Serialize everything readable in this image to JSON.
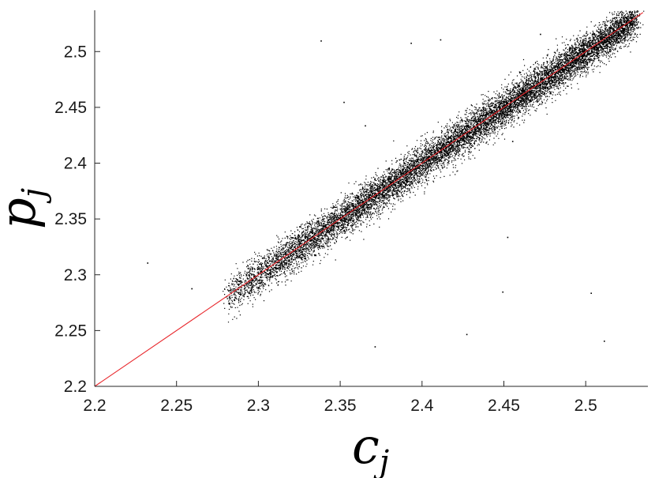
{
  "chart_data": {
    "type": "scatter",
    "title": "",
    "xlabel": {
      "base": "c",
      "sub": "j"
    },
    "ylabel": {
      "base": "p",
      "sub": "j"
    },
    "xlim": [
      2.2,
      2.538
    ],
    "ylim": [
      2.2,
      2.537
    ],
    "xticks": [
      "2.2",
      "2.25",
      "2.3",
      "2.35",
      "2.4",
      "2.45",
      "2.5"
    ],
    "yticks": [
      "2.2",
      "2.25",
      "2.3",
      "2.35",
      "2.4",
      "2.45",
      "2.5"
    ],
    "xtick_values": [
      2.2,
      2.25,
      2.3,
      2.35,
      2.4,
      2.45,
      2.5
    ],
    "ytick_values": [
      2.2,
      2.25,
      2.3,
      2.35,
      2.4,
      2.45,
      2.5
    ],
    "grid": false,
    "reference_line": {
      "from": [
        2.2,
        2.2
      ],
      "to": [
        2.535,
        2.535
      ],
      "color": "#e8252a"
    },
    "point_cloud": {
      "x_range": [
        2.28,
        2.53
      ],
      "approx_count": 12000,
      "spread": 0.008,
      "color": "#000000"
    },
    "outliers": [
      {
        "x": 2.232,
        "y": 2.311
      },
      {
        "x": 2.259,
        "y": 2.288
      },
      {
        "x": 2.338,
        "y": 2.51
      },
      {
        "x": 2.352,
        "y": 2.455
      },
      {
        "x": 2.365,
        "y": 2.434
      },
      {
        "x": 2.371,
        "y": 2.236
      },
      {
        "x": 2.393,
        "y": 2.508
      },
      {
        "x": 2.411,
        "y": 2.511
      },
      {
        "x": 2.427,
        "y": 2.247
      },
      {
        "x": 2.449,
        "y": 2.285
      },
      {
        "x": 2.452,
        "y": 2.334
      },
      {
        "x": 2.455,
        "y": 2.42
      },
      {
        "x": 2.472,
        "y": 2.516
      },
      {
        "x": 2.503,
        "y": 2.284
      },
      {
        "x": 2.511,
        "y": 2.241
      },
      {
        "x": 2.521,
        "y": 2.514
      }
    ]
  }
}
